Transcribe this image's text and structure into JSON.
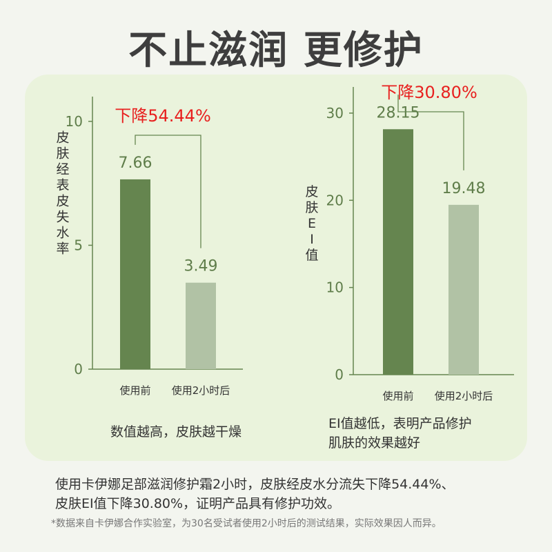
{
  "page": {
    "title": "不止滋润 更修护",
    "caption_left": "数值越高，皮肤越干燥",
    "caption_right_line1": "EI值越低，表明产品修护",
    "caption_right_line2": "肌肤的效果越好",
    "summary_line1": "使用卡伊娜足部滋润修护霜2小时，皮肤经皮水分流失下降54.44%、",
    "summary_line2": "皮肤EI值下降30.80%，证明产品具有修护功效。",
    "footnote": "*数据来自卡伊娜合作实验室，为30名受试者使用2小时后的测试结果，实际效果因人而异。"
  },
  "colors": {
    "before_bar": "#65854f",
    "after_bar": "#b1c2a5",
    "axis": "#65854f",
    "tick_text": "#5f7d4a",
    "value_text": "#5f7d4a",
    "bracket": "#65854f",
    "decrease_text": "#e8201f"
  },
  "chart_data": [
    {
      "type": "bar",
      "categories": [
        "使用前",
        "使用2小时后"
      ],
      "values": [
        7.66,
        3.49
      ],
      "value_labels": [
        "7.66",
        "3.49"
      ],
      "ylabel": "皮肤经表皮失水率",
      "ylim": [
        0,
        11
      ],
      "yticks": [
        0,
        5,
        10
      ],
      "annotation": "下降54.44%",
      "grid": false
    },
    {
      "type": "bar",
      "categories": [
        "使用前",
        "使用2小时后"
      ],
      "values": [
        28.15,
        19.48
      ],
      "value_labels": [
        "28.15",
        "19.48"
      ],
      "ylabel": "皮肤EI值",
      "ylim": [
        0,
        33
      ],
      "yticks": [
        0,
        10,
        20,
        30
      ],
      "annotation": "下降30.80%",
      "grid": false
    }
  ]
}
